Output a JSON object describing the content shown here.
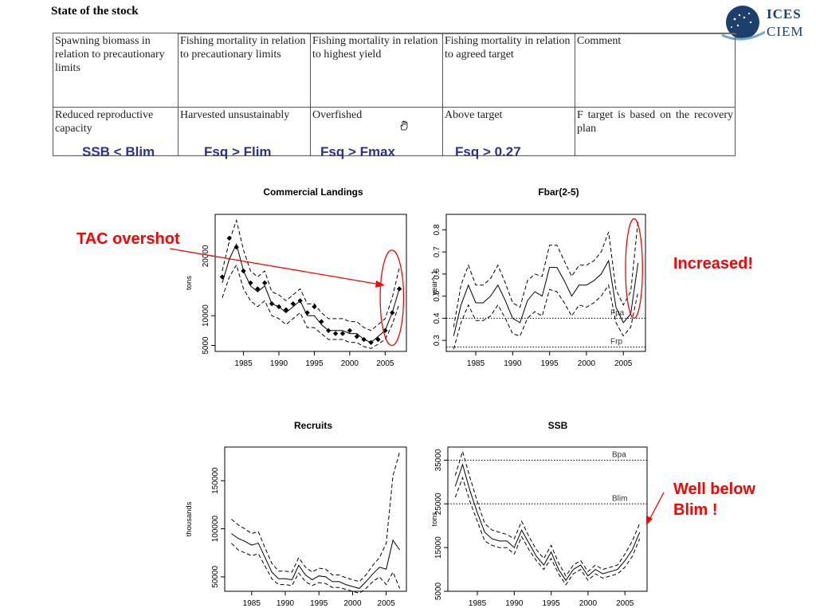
{
  "header": {
    "title": "State of the stock",
    "logo_top": "ICES",
    "logo_bottom": "CIEM"
  },
  "stock_table": {
    "headers": [
      "Spawning biomass in relation to precautionary limits",
      "Fishing mortality in relation to precautionary limits",
      "Fishing mortality in relation to highest yield",
      "Fishing mortality in relation to agreed target",
      "Comment"
    ],
    "values": [
      "Reduced reproductive capacity",
      "Harvested unsustainably",
      "Overfished",
      "Above target",
      "F target is based on the recovery plan"
    ],
    "blue_labels": [
      "SSB < Blim",
      "Fsq > Flim",
      "Fsq > Fmax",
      "Fsq > 0.27"
    ]
  },
  "annotations": {
    "tac": "TAC overshot",
    "increased": "Increased!",
    "blim": "Well below Blim !"
  },
  "colors": {
    "annotation": "#ff0000",
    "blue_label": "#2e3192",
    "logo": "#1d3f6e"
  },
  "chart_data": [
    {
      "type": "line",
      "title": "Commercial Landings",
      "ylabel": "tons",
      "xlim": [
        1981,
        2008
      ],
      "ylim": [
        4000,
        27000
      ],
      "xticks": [
        1985,
        1990,
        1995,
        2000,
        2005
      ],
      "yticks": [
        5000,
        10000,
        20000
      ],
      "x": [
        1982,
        1983,
        1984,
        1985,
        1986,
        1987,
        1988,
        1989,
        1990,
        1991,
        1992,
        1993,
        1994,
        1995,
        1996,
        1997,
        1998,
        1999,
        2000,
        2001,
        2002,
        2003,
        2004,
        2005,
        2006,
        2007
      ],
      "series": [
        {
          "style": "solid",
          "values": [
            15500,
            19500,
            22000,
            17500,
            15000,
            14000,
            15000,
            12000,
            11500,
            10500,
            11500,
            12500,
            10000,
            10000,
            8500,
            7500,
            7500,
            7500,
            7000,
            7000,
            6000,
            5500,
            6500,
            7500,
            10500,
            14500
          ]
        },
        {
          "style": "dashed",
          "values": [
            17500,
            22500,
            26000,
            21000,
            17500,
            16500,
            17500,
            14000,
            13500,
            12500,
            13500,
            14500,
            12000,
            12000,
            10500,
            9500,
            9500,
            9500,
            9000,
            9000,
            8000,
            7500,
            8500,
            9500,
            13000,
            18000
          ]
        },
        {
          "style": "dashed",
          "values": [
            13000,
            16500,
            18500,
            14500,
            12500,
            11500,
            12500,
            10000,
            9500,
            8500,
            9500,
            10500,
            8000,
            8000,
            7000,
            6000,
            6000,
            6000,
            5500,
            5500,
            4800,
            4500,
            5200,
            6000,
            8500,
            12000
          ]
        }
      ],
      "points": {
        "x": [
          1982,
          1983,
          1984,
          1985,
          1986,
          1987,
          1988,
          1989,
          1990,
          1991,
          1992,
          1993,
          1994,
          1995,
          1996,
          1997,
          1998,
          1999,
          2000,
          2001,
          2002,
          2003,
          2004,
          2005,
          2006,
          2007
        ],
        "y": [
          16500,
          23000,
          21500,
          17500,
          15500,
          14500,
          15500,
          12000,
          11500,
          11000,
          12000,
          12500,
          10500,
          11500,
          9000,
          7500,
          7000,
          7000,
          7500,
          6500,
          6000,
          5500,
          6000,
          7500,
          10500,
          14500
        ]
      },
      "highlight": {
        "x": [
          2004.3,
          2007.6
        ],
        "y": [
          5000,
          21000
        ]
      }
    },
    {
      "type": "line",
      "title": "Fbar(2-5)",
      "ylabel": "year^-1",
      "xlim": [
        1981,
        2008
      ],
      "ylim": [
        0.25,
        0.87
      ],
      "xticks": [
        1985,
        1990,
        1995,
        2000,
        2005
      ],
      "yticks": [
        0.3,
        0.4,
        0.5,
        0.6,
        0.7,
        0.8
      ],
      "x": [
        1982,
        1983,
        1984,
        1985,
        1986,
        1987,
        1988,
        1989,
        1990,
        1991,
        1992,
        1993,
        1994,
        1995,
        1996,
        1997,
        1998,
        1999,
        2000,
        2001,
        2002,
        2003,
        2004,
        2005,
        2006,
        2007
      ],
      "series": [
        {
          "style": "solid",
          "values": [
            0.32,
            0.46,
            0.55,
            0.47,
            0.47,
            0.5,
            0.55,
            0.48,
            0.4,
            0.38,
            0.48,
            0.52,
            0.5,
            0.63,
            0.63,
            0.57,
            0.5,
            0.55,
            0.55,
            0.57,
            0.6,
            0.66,
            0.45,
            0.38,
            0.42,
            0.65
          ]
        },
        {
          "style": "dashed",
          "values": [
            0.36,
            0.55,
            0.64,
            0.55,
            0.55,
            0.58,
            0.64,
            0.56,
            0.47,
            0.45,
            0.57,
            0.6,
            0.59,
            0.73,
            0.73,
            0.66,
            0.59,
            0.64,
            0.64,
            0.66,
            0.7,
            0.79,
            0.53,
            0.46,
            0.52,
            0.84
          ]
        },
        {
          "style": "dashed",
          "values": [
            0.26,
            0.38,
            0.46,
            0.39,
            0.39,
            0.41,
            0.46,
            0.4,
            0.33,
            0.32,
            0.4,
            0.43,
            0.41,
            0.53,
            0.52,
            0.47,
            0.41,
            0.46,
            0.45,
            0.47,
            0.5,
            0.55,
            0.38,
            0.32,
            0.36,
            0.52
          ]
        }
      ],
      "reference_lines": [
        {
          "label": "Fpa",
          "value": 0.4
        },
        {
          "label": "Frp",
          "value": 0.27
        }
      ],
      "highlight": {
        "x": [
          2005.3,
          2007.6
        ],
        "y": [
          0.4,
          0.85
        ]
      }
    },
    {
      "type": "line",
      "title": "Recruits",
      "ylabel": "thousands",
      "xlim": [
        1981,
        2008
      ],
      "ylim": [
        35000,
        185000
      ],
      "xticks": [
        1985,
        1990,
        1995,
        2000,
        2005
      ],
      "yticks": [
        50000,
        100000,
        150000
      ],
      "x": [
        1982,
        1983,
        1984,
        1985,
        1986,
        1987,
        1988,
        1989,
        1990,
        1991,
        1992,
        1993,
        1994,
        1995,
        1996,
        1997,
        1998,
        1999,
        2000,
        2001,
        2002,
        2003,
        2004,
        2005,
        2006,
        2007
      ],
      "series": [
        {
          "style": "solid",
          "values": [
            95000,
            90000,
            87000,
            83000,
            85000,
            70000,
            55000,
            48000,
            48000,
            47000,
            62000,
            52000,
            47000,
            51000,
            50000,
            45000,
            45000,
            42000,
            40000,
            38000,
            45000,
            53000,
            60000,
            58000,
            88000,
            78000
          ]
        },
        {
          "style": "dashed",
          "values": [
            110000,
            104000,
            100000,
            95000,
            97000,
            80000,
            64000,
            56000,
            56000,
            55000,
            70000,
            60000,
            55000,
            59000,
            58000,
            52000,
            52000,
            49000,
            47000,
            45000,
            52000,
            62000,
            70000,
            85000,
            155000,
            180000
          ]
        },
        {
          "style": "dashed",
          "values": [
            85000,
            78000,
            75000,
            72000,
            74000,
            61000,
            48000,
            42000,
            42000,
            41000,
            54000,
            45000,
            41000,
            44000,
            43000,
            39000,
            39000,
            37000,
            35000,
            33000,
            38000,
            45000,
            50000,
            42000,
            55000,
            38000
          ]
        }
      ]
    },
    {
      "type": "line",
      "title": "SSB",
      "ylabel": "tons",
      "xlim": [
        1981,
        2008
      ],
      "ylim": [
        5000,
        38000
      ],
      "xticks": [
        1985,
        1990,
        1995,
        2000,
        2005
      ],
      "yticks": [
        5000,
        15000,
        25000,
        35000
      ],
      "x": [
        1982,
        1983,
        1984,
        1985,
        1986,
        1987,
        1988,
        1989,
        1990,
        1991,
        1992,
        1993,
        1994,
        1995,
        1996,
        1997,
        1998,
        1999,
        2000,
        2001,
        2002,
        2003,
        2004,
        2005,
        2006,
        2007
      ],
      "series": [
        {
          "style": "solid",
          "values": [
            29000,
            34000,
            28000,
            23000,
            18500,
            17000,
            16500,
            16500,
            15000,
            19000,
            16000,
            13000,
            11000,
            14000,
            10000,
            7500,
            10000,
            11000,
            8500,
            10000,
            9000,
            9500,
            10000,
            12000,
            14500,
            18500
          ]
        },
        {
          "style": "dashed",
          "values": [
            31500,
            37000,
            31000,
            25500,
            20500,
            19000,
            18500,
            18000,
            17000,
            21000,
            17500,
            14500,
            12500,
            15500,
            11500,
            8500,
            11000,
            12000,
            9500,
            11000,
            10000,
            10500,
            11000,
            13500,
            16500,
            20500
          ]
        },
        {
          "style": "dashed",
          "values": [
            26500,
            31000,
            25500,
            21000,
            16500,
            15500,
            15000,
            15000,
            13500,
            17500,
            14500,
            12000,
            10000,
            12500,
            9000,
            6500,
            9000,
            10000,
            7500,
            9000,
            8000,
            8500,
            9000,
            10500,
            13000,
            17000
          ]
        }
      ],
      "reference_lines": [
        {
          "label": "Bpa",
          "value": 35000
        },
        {
          "label": "Blim",
          "value": 25000
        }
      ]
    }
  ]
}
